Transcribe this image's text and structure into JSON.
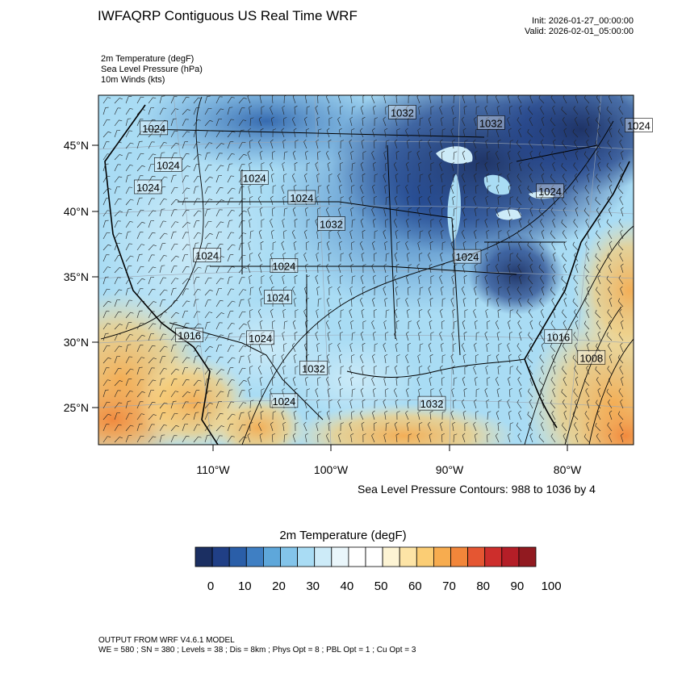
{
  "header": {
    "title": "IWFAQRP Contiguous US Real Time WRF",
    "init": "Init: 2026-01-27_00:00:00",
    "valid": "Valid: 2026-02-01_05:00:00"
  },
  "fields": [
    "2m Temperature   (degF)",
    "Sea Level Pressure   (hPa)",
    "10m Winds   (kts)"
  ],
  "map": {
    "lat_labels": [
      "45°N",
      "40°N",
      "35°N",
      "30°N",
      "25°N"
    ],
    "lon_labels": [
      "110°W",
      "100°W",
      "90°W",
      "80°W"
    ],
    "pressure_labels": [
      {
        "text": "1024",
        "lon": -115.0,
        "lat": 46.3
      },
      {
        "text": "1024",
        "lon": -113.8,
        "lat": 43.5
      },
      {
        "text": "1024",
        "lon": -106.5,
        "lat": 42.5
      },
      {
        "text": "1024",
        "lon": -115.5,
        "lat": 41.8
      },
      {
        "text": "1024",
        "lon": -102.5,
        "lat": 41.0
      },
      {
        "text": "1032",
        "lon": -100.0,
        "lat": 39.0
      },
      {
        "text": "1024",
        "lon": -110.5,
        "lat": 36.6
      },
      {
        "text": "1024",
        "lon": -104.0,
        "lat": 35.8
      },
      {
        "text": "1024",
        "lon": -104.5,
        "lat": 33.4
      },
      {
        "text": "1016",
        "lon": -112.0,
        "lat": 30.5
      },
      {
        "text": "1024",
        "lon": -106.0,
        "lat": 30.3
      },
      {
        "text": "1032",
        "lon": -101.5,
        "lat": 28.0
      },
      {
        "text": "1024",
        "lon": -104.0,
        "lat": 25.5
      },
      {
        "text": "1032",
        "lon": -91.5,
        "lat": 25.3
      },
      {
        "text": "1032",
        "lon": -86.5,
        "lat": 46.7
      },
      {
        "text": "1032",
        "lon": -94.0,
        "lat": 47.5
      },
      {
        "text": "1024",
        "lon": -74.0,
        "lat": 46.5
      },
      {
        "text": "1024",
        "lon": -81.5,
        "lat": 41.5
      },
      {
        "text": "1024",
        "lon": -88.5,
        "lat": 36.5
      },
      {
        "text": "1016",
        "lon": -80.8,
        "lat": 30.4
      },
      {
        "text": "1008",
        "lon": -78.0,
        "lat": 28.8
      }
    ]
  },
  "contour_note": "Sea Level Pressure Contours: 988 to 1036 by 4",
  "colorbar": {
    "title": "2m Temperature  (degF)",
    "tick_labels": [
      "0",
      "10",
      "20",
      "30",
      "40",
      "50",
      "60",
      "70",
      "80",
      "90",
      "100"
    ],
    "colors": [
      "#1b2f62",
      "#203f86",
      "#2a5ea8",
      "#3f7fc3",
      "#5ea7da",
      "#83c4ea",
      "#a9dcf4",
      "#cdebf8",
      "#eaf6fb",
      "#ffffff",
      "#ffffff",
      "#fdf4d4",
      "#fde4a6",
      "#fbcd74",
      "#f7ac4f",
      "#f2863a",
      "#e55632",
      "#cd2e2c",
      "#b41e27",
      "#911a20"
    ]
  },
  "footer": {
    "line1": "OUTPUT FROM WRF V4.6.1 MODEL",
    "line2": "WE = 580 ; SN = 380 ; Levels = 38 ; Dis = 8km ; Phys Opt = 8 ; PBL Opt = 1 ; Cu Opt = 3"
  }
}
